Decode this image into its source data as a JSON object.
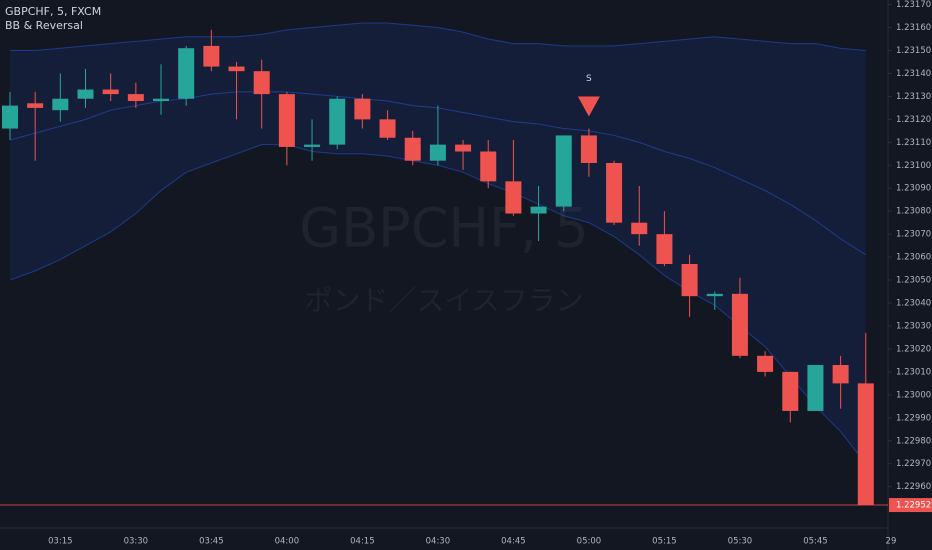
{
  "chart_data": {
    "type": "candlestick",
    "header": "GBPCHF, 5, FXCM",
    "indicator": "BB & Reversal",
    "watermark": "GBPCHF, 5",
    "watermark_subtitle": "ポンド／スイスフラン",
    "categories": [
      null,
      null,
      "03:15",
      null,
      null,
      "03:30",
      null,
      null,
      "03:45",
      null,
      null,
      "04:00",
      null,
      null,
      "04:15",
      null,
      null,
      "04:30",
      null,
      null,
      "04:45",
      null,
      null,
      "05:00",
      null,
      null,
      "05:15",
      null,
      null,
      "05:30",
      null,
      null,
      "05:45",
      null,
      null
    ],
    "next_day_label": "29",
    "open": [
      1.23116,
      1.23127,
      1.23124,
      1.23129,
      1.23133,
      1.23131,
      1.23128,
      1.23129,
      1.23152,
      1.23143,
      1.23141,
      1.23131,
      1.23108,
      1.23109,
      1.23129,
      1.2312,
      1.23112,
      1.23102,
      1.23109,
      1.23106,
      1.23093,
      1.23079,
      1.23082,
      1.23113,
      1.23101,
      1.23075,
      1.2307,
      1.23057,
      1.23043,
      1.23044,
      1.23017,
      1.2301,
      1.22993,
      1.23013,
      1.23005
    ],
    "high": [
      1.23132,
      1.23132,
      1.2314,
      1.23142,
      1.2314,
      1.23136,
      1.23144,
      1.23152,
      1.23159,
      1.23145,
      1.23146,
      1.23132,
      1.2312,
      1.2313,
      1.23131,
      1.23124,
      1.23115,
      1.23126,
      1.23111,
      1.23111,
      1.23111,
      1.23091,
      1.23113,
      1.23116,
      1.23102,
      1.23091,
      1.2308,
      1.23061,
      1.23045,
      1.23051,
      1.23019,
      1.2301,
      1.23013,
      1.23017,
      1.23027
    ],
    "low": [
      1.23111,
      1.23102,
      1.23119,
      1.23125,
      1.23128,
      1.23125,
      1.23122,
      1.23126,
      1.23141,
      1.2312,
      1.23116,
      1.231,
      1.23102,
      1.23107,
      1.23116,
      1.23111,
      1.231,
      1.231,
      1.23098,
      1.2309,
      1.23078,
      1.23067,
      1.2308,
      1.23095,
      1.23074,
      1.23065,
      1.23056,
      1.23034,
      1.23037,
      1.23016,
      1.23008,
      1.22988,
      1.22993,
      1.22994,
      1.22952
    ],
    "close": [
      1.23126,
      1.23125,
      1.23129,
      1.23133,
      1.23131,
      1.23128,
      1.23129,
      1.23151,
      1.23143,
      1.23141,
      1.23131,
      1.23108,
      1.23109,
      1.23129,
      1.2312,
      1.23112,
      1.23102,
      1.23109,
      1.23106,
      1.23093,
      1.23079,
      1.23082,
      1.23113,
      1.23101,
      1.23075,
      1.2307,
      1.23057,
      1.23043,
      1.23044,
      1.23017,
      1.2301,
      1.22993,
      1.23013,
      1.23005,
      1.22952
    ],
    "up_color": "#26a69a",
    "down_color": "#ef5350",
    "bands": {
      "color": "#2962ff",
      "upper": [
        1.2315,
        1.2315,
        1.23151,
        1.23152,
        1.23153,
        1.23154,
        1.23155,
        1.23156,
        1.23156,
        1.23156,
        1.23157,
        1.23159,
        1.2316,
        1.23161,
        1.23162,
        1.23162,
        1.23161,
        1.2316,
        1.23158,
        1.23155,
        1.23153,
        1.23153,
        1.23152,
        1.23152,
        1.23152,
        1.23153,
        1.23154,
        1.23155,
        1.23156,
        1.23155,
        1.23154,
        1.23153,
        1.23153,
        1.23151,
        1.2315
      ],
      "middle": [
        1.23111,
        1.23114,
        1.23117,
        1.2312,
        1.23124,
        1.23126,
        1.23128,
        1.23129,
        1.23131,
        1.23132,
        1.23132,
        1.23132,
        1.23131,
        1.2313,
        1.23129,
        1.23128,
        1.23126,
        1.23125,
        1.23123,
        1.23121,
        1.23119,
        1.23118,
        1.23116,
        1.23115,
        1.23113,
        1.2311,
        1.23106,
        1.23103,
        1.23099,
        1.23094,
        1.23089,
        1.23083,
        1.23076,
        1.23068,
        1.23061
      ],
      "lower": [
        1.2305,
        1.23054,
        1.23059,
        1.23065,
        1.23071,
        1.23079,
        1.23089,
        1.23097,
        1.23101,
        1.23105,
        1.23109,
        1.23109,
        1.23106,
        1.23105,
        1.23105,
        1.23104,
        1.23102,
        1.231,
        1.23097,
        1.23092,
        1.23088,
        1.23083,
        1.23078,
        1.23075,
        1.23069,
        1.23061,
        1.23052,
        1.23045,
        1.23039,
        1.2303,
        1.23021,
        1.23008,
        1.22995,
        1.22984,
        1.2297
      ]
    },
    "annotations": [
      {
        "text": "S",
        "at": "05:00"
      }
    ],
    "ylim": [
      1.22942,
      1.23172
    ],
    "yticks": [
      {
        "value": 1.2317,
        "label": "1.23170"
      },
      {
        "value": 1.2316,
        "label": "1.23160"
      },
      {
        "value": 1.2315,
        "label": "1.23150"
      },
      {
        "value": 1.2314,
        "label": "1.23140"
      },
      {
        "value": 1.2313,
        "label": "1.23130"
      },
      {
        "value": 1.2312,
        "label": "1.23120"
      },
      {
        "value": 1.2311,
        "label": "1.23110"
      },
      {
        "value": 1.231,
        "label": "1.23100"
      },
      {
        "value": 1.2309,
        "label": "1.23090"
      },
      {
        "value": 1.2308,
        "label": "1.23080"
      },
      {
        "value": 1.2307,
        "label": "1.23070"
      },
      {
        "value": 1.2306,
        "label": "1.23060"
      },
      {
        "value": 1.2305,
        "label": "1.23050"
      },
      {
        "value": 1.2304,
        "label": "1.23040"
      },
      {
        "value": 1.2303,
        "label": "1.23030"
      },
      {
        "value": 1.2302,
        "label": "1.23020"
      },
      {
        "value": 1.2301,
        "label": "1.23010"
      },
      {
        "value": 1.23,
        "label": "1.23000"
      },
      {
        "value": 1.2299,
        "label": "1.22990"
      },
      {
        "value": 1.2298,
        "label": "1.22980"
      },
      {
        "value": 1.2297,
        "label": "1.22970"
      },
      {
        "value": 1.2296,
        "label": "1.22960"
      }
    ],
    "grid": false
  }
}
